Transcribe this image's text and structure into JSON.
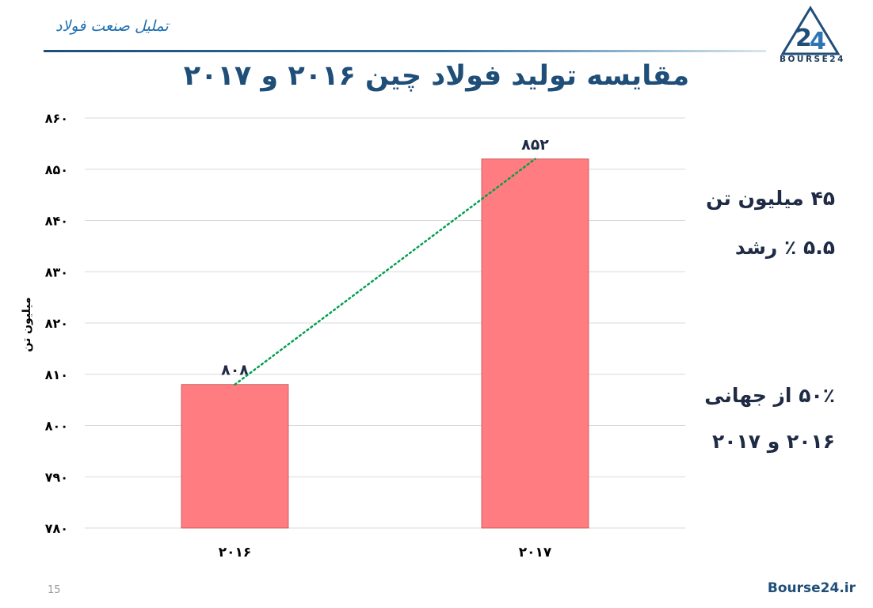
{
  "header": {
    "section_title": "تملیل صنعت فولاد"
  },
  "logo": {
    "text": "BOURSE24"
  },
  "slide": {
    "title": "مقایسه تولید فولاد چین ۲۰۱۶ و ۲۰۱۷",
    "page_number": "15",
    "footer_brand": "Bourse24.ir"
  },
  "notes": {
    "growth_amount": "۴۵ میلیون تن",
    "growth_percent": "۵.۵ ٪ رشد",
    "world_share": "۵۰٪ از جهانی",
    "world_share_years": "۲۰۱۶ و ۲۰۱۷"
  },
  "colors": {
    "bar": "#ff7c80",
    "bar_border": "#c0504d",
    "trendline": "#00a050",
    "grid": "#d9d9d9"
  },
  "chart_data": {
    "type": "bar",
    "categories": [
      "۲۰۱۶",
      "۲۰۱۷"
    ],
    "values": [
      808,
      852
    ],
    "data_labels": [
      "۸۰۸",
      "۸۵۲"
    ],
    "ylabel": "میلیون تن",
    "ylim": [
      780,
      860
    ],
    "yticks": [
      780,
      790,
      800,
      810,
      820,
      830,
      840,
      850,
      860
    ],
    "ytick_labels": [
      "۷۸۰",
      "۷۹۰",
      "۸۰۰",
      "۸۱۰",
      "۸۲۰",
      "۸۳۰",
      "۸۴۰",
      "۸۵۰",
      "۸۶۰"
    ],
    "grid": true,
    "legend": false,
    "trendline": "dotted"
  }
}
